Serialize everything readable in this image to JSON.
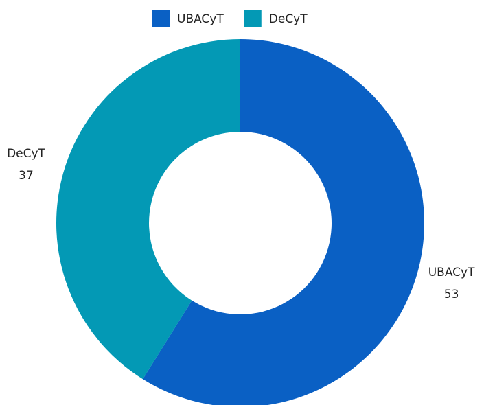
{
  "chart_data": {
    "type": "donut",
    "categories": [
      "UBACyT",
      "DeCyT"
    ],
    "values": [
      53,
      37
    ],
    "colors": [
      "#0a60c4",
      "#0399b5"
    ],
    "legend": "top"
  }
}
